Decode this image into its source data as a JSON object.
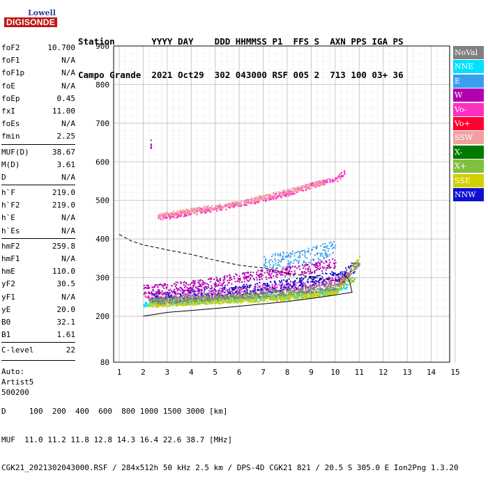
{
  "logo": {
    "top_text": "Lowell",
    "bottom_text": "DIGISONDE"
  },
  "header": {
    "line1": "Station       YYYY DAY    DDD HHMMSS P1  FFS S  AXN PPS IGA PS",
    "line2": "Campo Grande  2021 Oct29  302 043000 RSF 005 2  713 100 03+ 36"
  },
  "params": [
    {
      "label": "foF2",
      "value": "10.700"
    },
    {
      "label": "foF1",
      "value": "N/A"
    },
    {
      "label": "foF1p",
      "value": "N/A"
    },
    {
      "label": "foE",
      "value": "N/A"
    },
    {
      "label": "foEp",
      "value": "0.45"
    },
    {
      "label": "fxI",
      "value": "11.00"
    },
    {
      "label": "foEs",
      "value": "N/A"
    },
    {
      "label": "fmin",
      "value": "2.25"
    },
    {
      "label": "MUF(D)",
      "value": "38.67"
    },
    {
      "label": "M(D)",
      "value": "3.61"
    },
    {
      "label": "D",
      "value": "N/A"
    },
    {
      "label": "h`F",
      "value": "219.0"
    },
    {
      "label": "h`F2",
      "value": "219.0"
    },
    {
      "label": "h`E",
      "value": "N/A"
    },
    {
      "label": "h`Es",
      "value": "N/A"
    },
    {
      "label": "hmF2",
      "value": "259.8"
    },
    {
      "label": "hmF1",
      "value": "N/A"
    },
    {
      "label": "hmE",
      "value": "110.0"
    },
    {
      "label": "yF2",
      "value": "30.5"
    },
    {
      "label": "yF1",
      "value": "N/A"
    },
    {
      "label": "yE",
      "value": "20.0"
    },
    {
      "label": "B0",
      "value": "32.1"
    },
    {
      "label": "B1",
      "value": "1.61"
    },
    {
      "label": "C-level",
      "value": "22"
    }
  ],
  "auto": [
    "Auto:",
    "Artist5",
    "500200"
  ],
  "footer": {
    "line1": "D     100  200  400  600  800 1000 1500 3000 [km]",
    "line2": "MUF  11.0 11.2 11.8 12.8 14.3 16.4 22.6 38.7 [MHz]",
    "line3": "CGK21_2021302043000.RSF / 284x512h 50 kHz 2.5 km / DPS-4D CGK21 821 / 20.5 S 305.0 E Ion2Png 1.3.20"
  },
  "legend": [
    {
      "label": "NoVal",
      "color": "#808080"
    },
    {
      "label": "NNE",
      "color": "#00e0ff"
    },
    {
      "label": "E",
      "color": "#3a9ef0"
    },
    {
      "label": "W",
      "color": "#b000b0"
    },
    {
      "label": "Vo-",
      "color": "#ff30c0"
    },
    {
      "label": "Vo+",
      "color": "#ff0030"
    },
    {
      "label": "SSW",
      "color": "#f0a0a0"
    },
    {
      "label": "X-",
      "color": "#007a00"
    },
    {
      "label": "X+",
      "color": "#80c040"
    },
    {
      "label": "SSE",
      "color": "#d0d000"
    },
    {
      "label": "NNW",
      "color": "#1010d0"
    }
  ],
  "chart_data": {
    "type": "scatter",
    "xlim": [
      1,
      15
    ],
    "ylim": [
      80,
      900
    ],
    "xticks": [
      1,
      2,
      3,
      4,
      5,
      6,
      7,
      8,
      9,
      10,
      11,
      12,
      13,
      14,
      15
    ],
    "yticks": [
      80,
      200,
      300,
      400,
      500,
      600,
      700,
      800,
      900
    ],
    "grid": true,
    "legend_position": "right",
    "traces": [
      {
        "series": "Vo-",
        "points": [
          [
            2.0,
            255
          ],
          [
            2.5,
            252
          ],
          [
            3,
            253
          ],
          [
            3.5,
            255
          ],
          [
            4,
            258
          ],
          [
            4.5,
            260
          ],
          [
            5,
            262
          ],
          [
            5.5,
            266
          ],
          [
            6,
            268
          ],
          [
            6.5,
            270
          ],
          [
            7,
            272
          ],
          [
            7.5,
            275
          ],
          [
            8,
            278
          ],
          [
            8.5,
            280
          ],
          [
            9,
            283
          ],
          [
            9.5,
            288
          ],
          [
            10,
            293
          ],
          [
            10.3,
            300
          ],
          [
            10.6,
            312
          ]
        ],
        "spread": 22
      },
      {
        "series": "NNW",
        "points": [
          [
            2.2,
            248
          ],
          [
            3,
            250
          ],
          [
            4,
            256
          ],
          [
            5,
            262
          ],
          [
            6,
            268
          ],
          [
            7,
            275
          ],
          [
            8,
            283
          ],
          [
            9,
            292
          ],
          [
            10,
            305
          ],
          [
            10.5,
            318
          ],
          [
            10.8,
            330
          ]
        ],
        "spread": 30
      },
      {
        "series": "NNE",
        "points": [
          [
            2.0,
            232
          ],
          [
            3,
            234
          ],
          [
            4,
            238
          ],
          [
            5,
            241
          ],
          [
            6,
            244
          ],
          [
            7,
            248
          ],
          [
            8,
            252
          ],
          [
            9,
            258
          ],
          [
            10,
            266
          ],
          [
            10.5,
            280
          ]
        ],
        "spread": 12
      },
      {
        "series": "X+",
        "points": [
          [
            2.2,
            238
          ],
          [
            4,
            244
          ],
          [
            6,
            250
          ],
          [
            8,
            258
          ],
          [
            9,
            264
          ],
          [
            10,
            272
          ],
          [
            10.8,
            300
          ]
        ],
        "spread": 14
      },
      {
        "series": "SSE",
        "points": [
          [
            2.2,
            230
          ],
          [
            4,
            236
          ],
          [
            6,
            242
          ],
          [
            8,
            248
          ],
          [
            10,
            262
          ],
          [
            11,
            355
          ]
        ],
        "spread": 12
      },
      {
        "series": "W",
        "points": [
          [
            2.0,
            270
          ],
          [
            3,
            275
          ],
          [
            4,
            280
          ],
          [
            5,
            290
          ],
          [
            6,
            300
          ],
          [
            7,
            310
          ],
          [
            8,
            318
          ],
          [
            9,
            325
          ],
          [
            10,
            340
          ]
        ],
        "spread": 26
      },
      {
        "series": "NoVal",
        "points": [
          [
            2.3,
            240
          ],
          [
            5,
            252
          ],
          [
            8,
            265
          ],
          [
            10,
            280
          ],
          [
            11,
            340
          ]
        ],
        "spread": 20
      },
      {
        "series": "Vo-",
        "points": [
          [
            2.6,
            456
          ],
          [
            4,
            470
          ],
          [
            5,
            480
          ],
          [
            6,
            492
          ],
          [
            7,
            505
          ],
          [
            8,
            520
          ],
          [
            9,
            540
          ],
          [
            10,
            555
          ],
          [
            10.4,
            575
          ]
        ],
        "spread": 14
      },
      {
        "series": "SSW",
        "points": [
          [
            2.6,
            462
          ],
          [
            4,
            475
          ],
          [
            6,
            495
          ],
          [
            8,
            525
          ],
          [
            9.5,
            548
          ]
        ],
        "spread": 12
      },
      {
        "series": "E",
        "points": [
          [
            7,
            340
          ],
          [
            8,
            350
          ],
          [
            9,
            360
          ],
          [
            10,
            380
          ]
        ],
        "spread": 40
      },
      {
        "series": "W",
        "points": [
          [
            2.3,
            630
          ],
          [
            2.3,
            665
          ]
        ],
        "spread": 30
      }
    ],
    "profile_solid": [
      [
        2,
        200
      ],
      [
        3,
        210
      ],
      [
        4,
        215
      ],
      [
        5,
        220
      ],
      [
        6,
        226
      ],
      [
        7,
        232
      ],
      [
        8,
        238
      ],
      [
        9,
        246
      ],
      [
        10,
        255
      ],
      [
        10.7,
        262
      ],
      [
        10.6,
        290
      ],
      [
        10.5,
        300
      ],
      [
        10.3,
        310
      ]
    ],
    "profile_dashed": [
      [
        1,
        412
      ],
      [
        1.5,
        395
      ],
      [
        2,
        385
      ],
      [
        3,
        372
      ],
      [
        4,
        360
      ],
      [
        5,
        345
      ],
      [
        6,
        332
      ],
      [
        7,
        325
      ],
      [
        8,
        312
      ],
      [
        9,
        302
      ],
      [
        10,
        292
      ],
      [
        10.5,
        287
      ]
    ]
  }
}
